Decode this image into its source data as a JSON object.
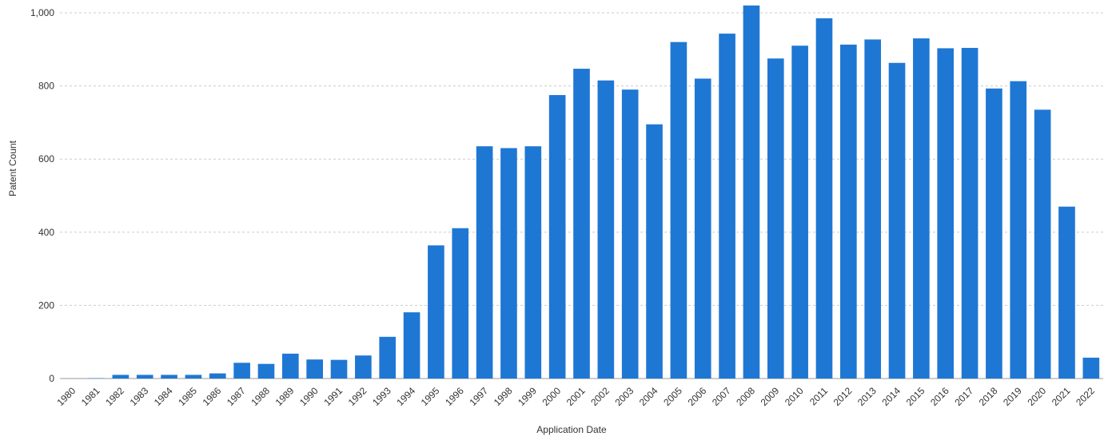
{
  "chart_data": {
    "type": "bar",
    "xlabel": "Application Date",
    "ylabel": "Patent Count",
    "ylim": [
      0,
      1000
    ],
    "yticks": [
      0,
      200,
      400,
      600,
      800,
      1000
    ],
    "ytick_labels": [
      "0",
      "200",
      "400",
      "600",
      "800",
      "1,000"
    ],
    "grid": true,
    "bar_color": "#1f77d4",
    "categories": [
      "1980",
      "1981",
      "1982",
      "1983",
      "1984",
      "1985",
      "1986",
      "1987",
      "1988",
      "1989",
      "1990",
      "1991",
      "1992",
      "1993",
      "1994",
      "1995",
      "1996",
      "1997",
      "1998",
      "1999",
      "2000",
      "2001",
      "2002",
      "2003",
      "2004",
      "2005",
      "2006",
      "2007",
      "2008",
      "2009",
      "2010",
      "2011",
      "2012",
      "2013",
      "2014",
      "2015",
      "2016",
      "2017",
      "2018",
      "2019",
      "2020",
      "2021",
      "2022"
    ],
    "values": [
      0,
      1,
      10,
      10,
      10,
      10,
      14,
      43,
      40,
      68,
      52,
      51,
      63,
      114,
      181,
      364,
      411,
      635,
      630,
      635,
      775,
      847,
      815,
      790,
      695,
      920,
      820,
      943,
      1020,
      875,
      910,
      985,
      913,
      927,
      863,
      930,
      903,
      904,
      793,
      813,
      735,
      470,
      57
    ]
  }
}
